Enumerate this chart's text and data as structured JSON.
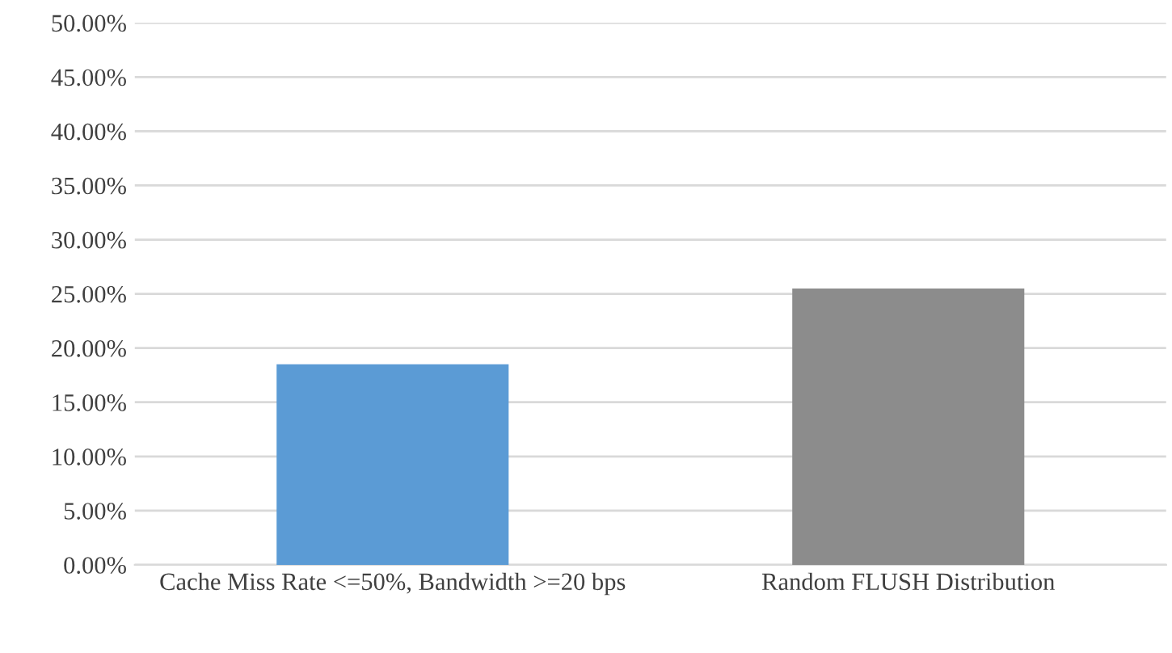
{
  "chart_data": {
    "type": "bar",
    "categories": [
      "Cache Miss Rate <=50%, Bandwidth >=20 bps",
      "Random FLUSH Distribution"
    ],
    "values": [
      18.5,
      25.5
    ],
    "colors": [
      "#5b9bd5",
      "#8c8c8c"
    ],
    "ylim": [
      0,
      50
    ],
    "yticks": [
      {
        "value": 0,
        "label": "0.00%"
      },
      {
        "value": 5,
        "label": "5.00%"
      },
      {
        "value": 10,
        "label": "10.00%"
      },
      {
        "value": 15,
        "label": "15.00%"
      },
      {
        "value": 20,
        "label": "20.00%"
      },
      {
        "value": 25,
        "label": "25.00%"
      },
      {
        "value": 30,
        "label": "30.00%"
      },
      {
        "value": 35,
        "label": "35.00%"
      },
      {
        "value": 40,
        "label": "40.00%"
      },
      {
        "value": 45,
        "label": "45.00%"
      },
      {
        "value": 50,
        "label": "50.00%"
      }
    ],
    "grid": "y"
  }
}
